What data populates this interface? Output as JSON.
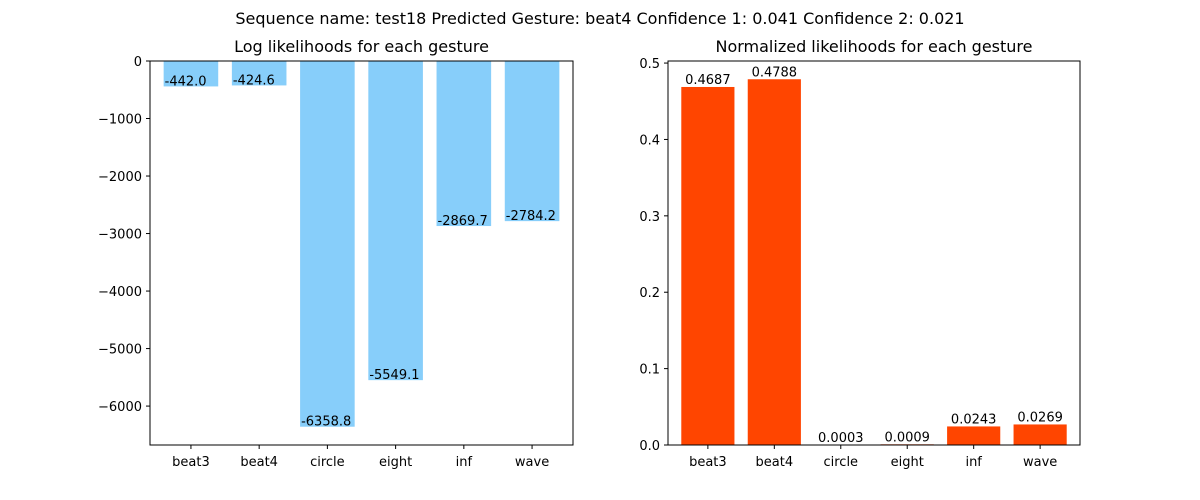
{
  "suptitle": "Sequence name: test18  Predicted Gesture: beat4     Confidence 1: 0.041   Confidence 2: 0.021",
  "chart_data": [
    {
      "type": "bar",
      "title": "Log likelihoods for each gesture",
      "xlabel": "",
      "ylabel": "",
      "categories": [
        "beat3",
        "beat4",
        "circle",
        "eight",
        "inf",
        "wave"
      ],
      "values": [
        -442.0,
        -424.6,
        -6358.8,
        -5549.1,
        -2869.7,
        -2784.2
      ],
      "value_labels": [
        "-442.0",
        "-424.6",
        "-6358.8",
        "-5549.1",
        "-2869.7",
        "-2784.2"
      ],
      "yticks": [
        0,
        -1000,
        -2000,
        -3000,
        -4000,
        -5000,
        -6000
      ],
      "ytick_labels": [
        "0",
        "−1000",
        "−2000",
        "−3000",
        "−4000",
        "−5000",
        "−6000"
      ],
      "ylim": [
        -6676.7,
        0
      ],
      "bar_color": "#87cefa",
      "grid": false
    },
    {
      "type": "bar",
      "title": "Normalized likelihoods for each gesture",
      "xlabel": "",
      "ylabel": "",
      "categories": [
        "beat3",
        "beat4",
        "circle",
        "eight",
        "inf",
        "wave"
      ],
      "values": [
        0.4687,
        0.4788,
        0.0003,
        0.0009,
        0.0243,
        0.0269
      ],
      "value_labels": [
        "0.4687",
        "0.4788",
        "0.0003",
        "0.0009",
        "0.0243",
        "0.0269"
      ],
      "yticks": [
        0.0,
        0.1,
        0.2,
        0.3,
        0.4,
        0.5
      ],
      "ytick_labels": [
        "0.0",
        "0.1",
        "0.2",
        "0.3",
        "0.4",
        "0.5"
      ],
      "ylim": [
        0,
        0.5027
      ],
      "bar_color": "#ff4500",
      "grid": false
    }
  ]
}
